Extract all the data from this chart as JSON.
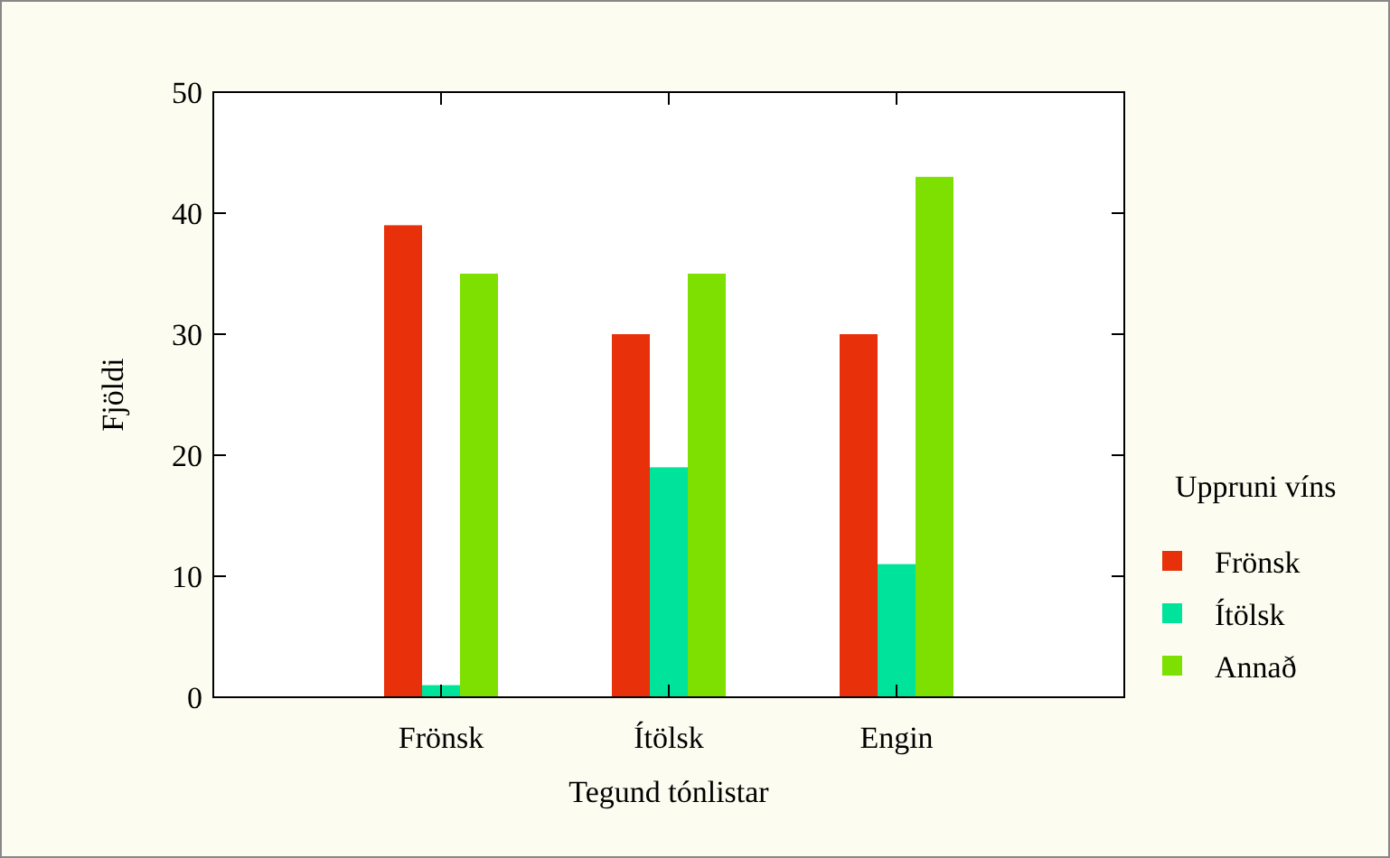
{
  "chart_data": {
    "type": "bar",
    "xlabel": "Tegund tónlistar",
    "ylabel": "Fjöldi",
    "legend_title": "Uppruni víns",
    "categories": [
      "Frönsk",
      "Ítölsk",
      "Engin"
    ],
    "series": [
      {
        "name": "Frönsk",
        "color": "#e8300a",
        "values": [
          39,
          30,
          30
        ]
      },
      {
        "name": "Ítölsk",
        "color": "#00e39b",
        "values": [
          1,
          19,
          11
        ]
      },
      {
        "name": "Annað",
        "color": "#7ee000",
        "values": [
          35,
          35,
          43
        ]
      }
    ],
    "ylim": [
      0,
      50
    ],
    "yticks": [
      0,
      10,
      20,
      30,
      40,
      50
    ],
    "grid": false,
    "legend": "right"
  }
}
